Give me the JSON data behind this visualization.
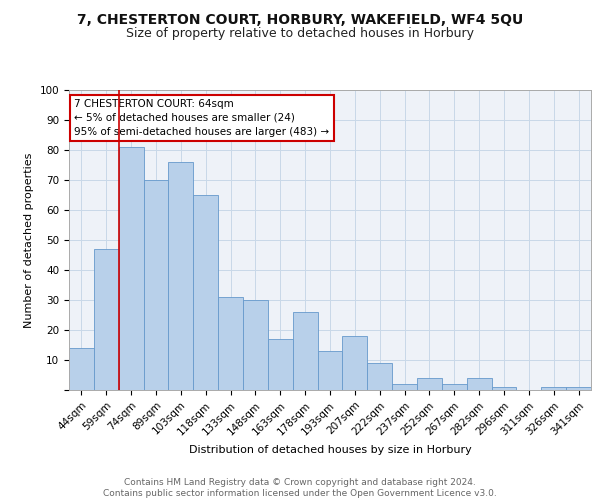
{
  "title1": "7, CHESTERTON COURT, HORBURY, WAKEFIELD, WF4 5QU",
  "title2": "Size of property relative to detached houses in Horbury",
  "xlabel": "Distribution of detached houses by size in Horbury",
  "ylabel": "Number of detached properties",
  "categories": [
    "44sqm",
    "59sqm",
    "74sqm",
    "89sqm",
    "103sqm",
    "118sqm",
    "133sqm",
    "148sqm",
    "163sqm",
    "178sqm",
    "193sqm",
    "207sqm",
    "222sqm",
    "237sqm",
    "252sqm",
    "267sqm",
    "282sqm",
    "296sqm",
    "311sqm",
    "326sqm",
    "341sqm"
  ],
  "values": [
    14,
    47,
    81,
    70,
    76,
    65,
    31,
    30,
    17,
    26,
    13,
    18,
    9,
    2,
    4,
    2,
    4,
    1,
    0,
    1,
    1
  ],
  "bar_color": "#b8d0ea",
  "bar_edge_color": "#6699cc",
  "vline_color": "#cc0000",
  "annotation_text": "7 CHESTERTON COURT: 64sqm\n← 5% of detached houses are smaller (24)\n95% of semi-detached houses are larger (483) →",
  "annotation_box_color": "#cc0000",
  "ylim": [
    0,
    100
  ],
  "yticks": [
    0,
    10,
    20,
    30,
    40,
    50,
    60,
    70,
    80,
    90,
    100
  ],
  "grid_color": "#c8d8e8",
  "background_color": "#eef2f8",
  "footer": "Contains HM Land Registry data © Crown copyright and database right 2024.\nContains public sector information licensed under the Open Government Licence v3.0.",
  "title_fontsize": 10,
  "subtitle_fontsize": 9,
  "axis_label_fontsize": 8,
  "tick_fontsize": 7.5,
  "footer_fontsize": 6.5
}
